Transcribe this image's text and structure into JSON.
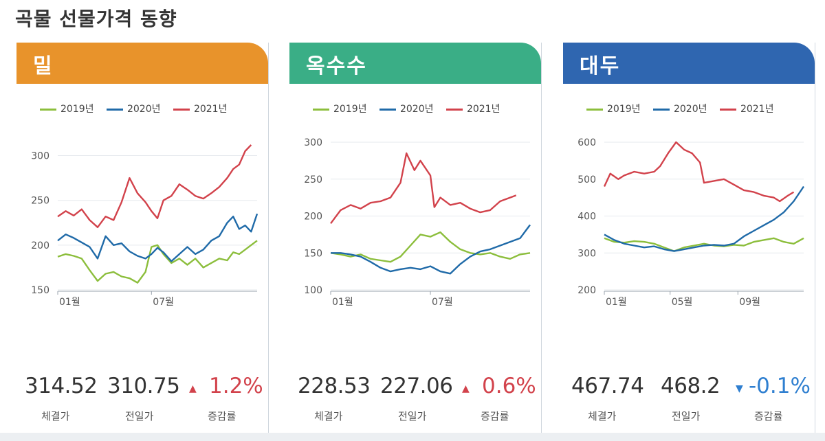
{
  "page_title": "곡물 선물가격 동향",
  "legend_labels": [
    "2019년",
    "2020년",
    "2021년"
  ],
  "colors": {
    "2019년": "#8cbe3c",
    "2020년": "#1f6aa8",
    "2021년": "#d2424b"
  },
  "stat_captions": {
    "close": "체결가",
    "prev": "전일가",
    "change": "증감률"
  },
  "panels": [
    {
      "name": "밀",
      "header_color": "#e8932b",
      "close": "314.52",
      "prev": "310.75",
      "change_arrow": "▲",
      "change_color": "#d2424b",
      "change": "1.2%",
      "chart_data": {
        "type": "line",
        "ylim": [
          150,
          315
        ],
        "yticks": [
          150,
          200,
          250,
          300
        ],
        "xticks": [
          {
            "label": "01월",
            "t": 0
          },
          {
            "label": "07월",
            "t": 0.47
          }
        ],
        "series": [
          {
            "name": "2019년",
            "values": [
              [
                0,
                187
              ],
              [
                0.04,
                190
              ],
              [
                0.08,
                188
              ],
              [
                0.12,
                185
              ],
              [
                0.16,
                172
              ],
              [
                0.2,
                160
              ],
              [
                0.24,
                168
              ],
              [
                0.28,
                170
              ],
              [
                0.32,
                165
              ],
              [
                0.36,
                163
              ],
              [
                0.4,
                158
              ],
              [
                0.44,
                170
              ],
              [
                0.47,
                198
              ],
              [
                0.5,
                200
              ],
              [
                0.53,
                190
              ],
              [
                0.57,
                180
              ],
              [
                0.61,
                185
              ],
              [
                0.65,
                178
              ],
              [
                0.69,
                185
              ],
              [
                0.73,
                175
              ],
              [
                0.77,
                180
              ],
              [
                0.81,
                185
              ],
              [
                0.85,
                183
              ],
              [
                0.88,
                192
              ],
              [
                0.91,
                190
              ],
              [
                0.94,
                195
              ],
              [
                0.97,
                200
              ],
              [
                1.0,
                205
              ]
            ]
          },
          {
            "name": "2020년",
            "values": [
              [
                0,
                205
              ],
              [
                0.04,
                212
              ],
              [
                0.08,
                208
              ],
              [
                0.12,
                203
              ],
              [
                0.16,
                198
              ],
              [
                0.2,
                185
              ],
              [
                0.24,
                210
              ],
              [
                0.28,
                200
              ],
              [
                0.32,
                202
              ],
              [
                0.36,
                193
              ],
              [
                0.4,
                188
              ],
              [
                0.44,
                185
              ],
              [
                0.47,
                190
              ],
              [
                0.5,
                197
              ],
              [
                0.53,
                192
              ],
              [
                0.57,
                182
              ],
              [
                0.61,
                190
              ],
              [
                0.65,
                198
              ],
              [
                0.69,
                190
              ],
              [
                0.73,
                195
              ],
              [
                0.77,
                205
              ],
              [
                0.81,
                210
              ],
              [
                0.85,
                225
              ],
              [
                0.88,
                232
              ],
              [
                0.91,
                218
              ],
              [
                0.94,
                222
              ],
              [
                0.97,
                215
              ],
              [
                1.0,
                235
              ]
            ]
          },
          {
            "name": "2021년",
            "values": [
              [
                0,
                232
              ],
              [
                0.04,
                238
              ],
              [
                0.08,
                233
              ],
              [
                0.12,
                240
              ],
              [
                0.16,
                228
              ],
              [
                0.2,
                220
              ],
              [
                0.24,
                232
              ],
              [
                0.28,
                228
              ],
              [
                0.32,
                248
              ],
              [
                0.36,
                275
              ],
              [
                0.4,
                258
              ],
              [
                0.44,
                248
              ],
              [
                0.47,
                238
              ],
              [
                0.5,
                230
              ],
              [
                0.53,
                250
              ],
              [
                0.57,
                255
              ],
              [
                0.61,
                268
              ],
              [
                0.65,
                262
              ],
              [
                0.69,
                255
              ],
              [
                0.73,
                252
              ],
              [
                0.77,
                258
              ],
              [
                0.81,
                265
              ],
              [
                0.85,
                275
              ],
              [
                0.88,
                285
              ],
              [
                0.91,
                290
              ],
              [
                0.94,
                305
              ],
              [
                0.97,
                312
              ]
            ]
          }
        ]
      }
    },
    {
      "name": "옥수수",
      "header_color": "#3aae86",
      "close": "228.53",
      "prev": "227.06",
      "change_arrow": "▲",
      "change_color": "#d2424b",
      "change": "0.6%",
      "chart_data": {
        "type": "line",
        "ylim": [
          100,
          300
        ],
        "yticks": [
          100,
          150,
          200,
          250,
          300
        ],
        "xticks": [
          {
            "label": "01월",
            "t": 0
          },
          {
            "label": "07월",
            "t": 0.5
          }
        ],
        "series": [
          {
            "name": "2019년",
            "values": [
              [
                0,
                150
              ],
              [
                0.05,
                148
              ],
              [
                0.1,
                145
              ],
              [
                0.15,
                148
              ],
              [
                0.2,
                142
              ],
              [
                0.25,
                140
              ],
              [
                0.3,
                138
              ],
              [
                0.35,
                145
              ],
              [
                0.4,
                160
              ],
              [
                0.45,
                175
              ],
              [
                0.5,
                172
              ],
              [
                0.55,
                178
              ],
              [
                0.6,
                165
              ],
              [
                0.65,
                155
              ],
              [
                0.7,
                150
              ],
              [
                0.75,
                148
              ],
              [
                0.8,
                150
              ],
              [
                0.85,
                145
              ],
              [
                0.9,
                142
              ],
              [
                0.95,
                148
              ],
              [
                1.0,
                150
              ]
            ]
          },
          {
            "name": "2020년",
            "values": [
              [
                0,
                150
              ],
              [
                0.05,
                150
              ],
              [
                0.1,
                148
              ],
              [
                0.15,
                145
              ],
              [
                0.2,
                138
              ],
              [
                0.25,
                130
              ],
              [
                0.3,
                125
              ],
              [
                0.35,
                128
              ],
              [
                0.4,
                130
              ],
              [
                0.45,
                128
              ],
              [
                0.5,
                132
              ],
              [
                0.55,
                125
              ],
              [
                0.6,
                122
              ],
              [
                0.65,
                135
              ],
              [
                0.7,
                145
              ],
              [
                0.75,
                152
              ],
              [
                0.8,
                155
              ],
              [
                0.85,
                160
              ],
              [
                0.9,
                165
              ],
              [
                0.95,
                170
              ],
              [
                1.0,
                188
              ]
            ]
          },
          {
            "name": "2021년",
            "values": [
              [
                0,
                190
              ],
              [
                0.05,
                208
              ],
              [
                0.1,
                215
              ],
              [
                0.15,
                210
              ],
              [
                0.2,
                218
              ],
              [
                0.25,
                220
              ],
              [
                0.3,
                225
              ],
              [
                0.35,
                245
              ],
              [
                0.38,
                285
              ],
              [
                0.42,
                262
              ],
              [
                0.45,
                275
              ],
              [
                0.5,
                255
              ],
              [
                0.52,
                212
              ],
              [
                0.55,
                225
              ],
              [
                0.6,
                215
              ],
              [
                0.65,
                218
              ],
              [
                0.7,
                210
              ],
              [
                0.75,
                205
              ],
              [
                0.8,
                208
              ],
              [
                0.85,
                220
              ],
              [
                0.9,
                225
              ],
              [
                0.93,
                228
              ]
            ]
          }
        ]
      }
    },
    {
      "name": "대두",
      "header_color": "#2f66b0",
      "close": "467.74",
      "prev": "468.2",
      "change_arrow": "▼",
      "change_color": "#2f7fd0",
      "change": "-0.1%",
      "chart_data": {
        "type": "line",
        "ylim": [
          200,
          600
        ],
        "yticks": [
          200,
          300,
          400,
          500,
          600
        ],
        "xticks": [
          {
            "label": "01월",
            "t": 0
          },
          {
            "label": "05월",
            "t": 0.33
          },
          {
            "label": "09월",
            "t": 0.67
          }
        ],
        "series": [
          {
            "name": "2019년",
            "values": [
              [
                0,
                340
              ],
              [
                0.05,
                330
              ],
              [
                0.1,
                328
              ],
              [
                0.15,
                332
              ],
              [
                0.2,
                330
              ],
              [
                0.25,
                325
              ],
              [
                0.3,
                315
              ],
              [
                0.35,
                305
              ],
              [
                0.4,
                315
              ],
              [
                0.45,
                320
              ],
              [
                0.5,
                325
              ],
              [
                0.55,
                320
              ],
              [
                0.6,
                318
              ],
              [
                0.65,
                322
              ],
              [
                0.7,
                320
              ],
              [
                0.75,
                330
              ],
              [
                0.8,
                335
              ],
              [
                0.85,
                340
              ],
              [
                0.9,
                330
              ],
              [
                0.95,
                325
              ],
              [
                1.0,
                340
              ]
            ]
          },
          {
            "name": "2020년",
            "values": [
              [
                0,
                350
              ],
              [
                0.05,
                335
              ],
              [
                0.1,
                325
              ],
              [
                0.15,
                320
              ],
              [
                0.2,
                315
              ],
              [
                0.25,
                318
              ],
              [
                0.3,
                310
              ],
              [
                0.35,
                305
              ],
              [
                0.4,
                310
              ],
              [
                0.45,
                315
              ],
              [
                0.5,
                320
              ],
              [
                0.55,
                322
              ],
              [
                0.6,
                320
              ],
              [
                0.65,
                325
              ],
              [
                0.7,
                345
              ],
              [
                0.75,
                360
              ],
              [
                0.8,
                375
              ],
              [
                0.85,
                390
              ],
              [
                0.9,
                410
              ],
              [
                0.95,
                440
              ],
              [
                1.0,
                480
              ]
            ]
          },
          {
            "name": "2021년",
            "values": [
              [
                0,
                480
              ],
              [
                0.03,
                515
              ],
              [
                0.07,
                500
              ],
              [
                0.1,
                510
              ],
              [
                0.15,
                520
              ],
              [
                0.2,
                515
              ],
              [
                0.25,
                520
              ],
              [
                0.28,
                535
              ],
              [
                0.32,
                570
              ],
              [
                0.36,
                600
              ],
              [
                0.4,
                580
              ],
              [
                0.44,
                570
              ],
              [
                0.48,
                545
              ],
              [
                0.5,
                490
              ],
              [
                0.55,
                495
              ],
              [
                0.6,
                500
              ],
              [
                0.65,
                485
              ],
              [
                0.7,
                470
              ],
              [
                0.75,
                465
              ],
              [
                0.8,
                455
              ],
              [
                0.85,
                450
              ],
              [
                0.88,
                440
              ],
              [
                0.92,
                455
              ],
              [
                0.95,
                465
              ]
            ]
          }
        ]
      }
    }
  ]
}
